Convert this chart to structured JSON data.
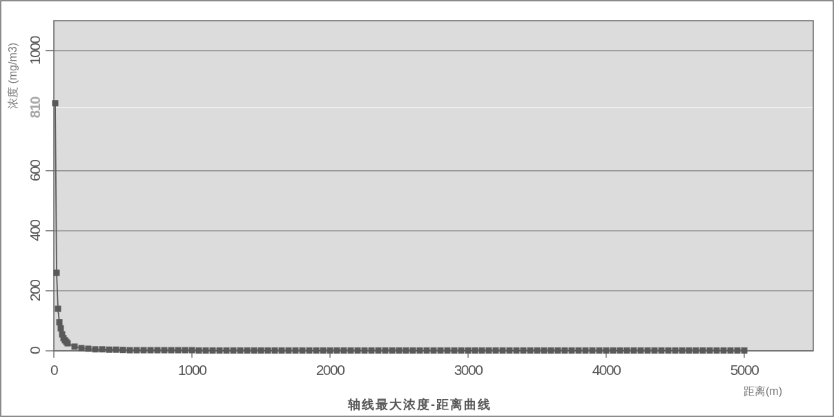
{
  "chart_data": {
    "type": "line",
    "title": "轴线最大浓度-距离曲线",
    "xlabel": "距离(m)",
    "ylabel": "浓度 (mg/m3)",
    "x": [
      10,
      20,
      30,
      40,
      50,
      60,
      70,
      80,
      90,
      100,
      150,
      200,
      250,
      300,
      350,
      400,
      450,
      500,
      550,
      600,
      650,
      700,
      750,
      800,
      850,
      900,
      950,
      1000,
      1050,
      1100,
      1150,
      1200,
      1250,
      1300,
      1350,
      1400,
      1450,
      1500,
      1550,
      1600,
      1650,
      1700,
      1750,
      1800,
      1850,
      1900,
      1950,
      2000,
      2050,
      2100,
      2150,
      2200,
      2250,
      2300,
      2350,
      2400,
      2450,
      2500,
      2550,
      2600,
      2650,
      2700,
      2750,
      2800,
      2850,
      2900,
      2950,
      3000,
      3050,
      3100,
      3150,
      3200,
      3250,
      3300,
      3350,
      3400,
      3450,
      3500,
      3550,
      3600,
      3650,
      3700,
      3750,
      3800,
      3850,
      3900,
      3950,
      4000,
      4050,
      4100,
      4150,
      4200,
      4250,
      4300,
      4350,
      4400,
      4450,
      4500,
      4550,
      4600,
      4650,
      4700,
      4750,
      4800,
      4850,
      4900,
      4950,
      5000
    ],
    "series": [
      {
        "color": "#595959",
        "values": [
          825,
          260,
          140,
          95,
          75,
          55,
          42,
          35,
          30,
          25,
          14,
          9,
          7,
          5,
          5,
          4,
          4,
          3,
          2,
          2,
          2,
          2,
          2,
          2,
          2,
          2,
          2,
          2,
          1,
          1,
          1,
          1,
          1,
          1,
          1,
          1,
          1,
          1,
          1,
          1,
          1,
          1,
          1,
          1,
          1,
          1,
          1,
          1,
          1,
          1,
          1,
          1,
          1,
          1,
          1,
          1,
          1,
          1,
          1,
          1,
          1,
          1,
          1,
          1,
          1,
          1,
          1,
          1,
          1,
          1,
          1,
          1,
          1,
          1,
          1,
          1,
          1,
          1,
          1,
          1,
          1,
          1,
          1,
          1,
          1,
          1,
          1,
          1,
          1,
          1,
          1,
          1,
          1,
          1,
          1,
          1,
          1,
          1,
          1,
          1,
          1,
          1,
          1,
          1,
          1,
          1,
          1,
          1
        ]
      }
    ],
    "xlim": [
      0,
      5500
    ],
    "ylim": [
      0,
      1100
    ],
    "xticks": [
      0,
      1000,
      2000,
      3000,
      4000,
      5000
    ],
    "yticks": [
      0,
      200,
      400,
      600,
      1000
    ],
    "ref_lines": [
      {
        "axis": "y",
        "value": 810,
        "label": "810",
        "color": "#f4f4f4"
      }
    ],
    "grid": "y",
    "marker": "square"
  }
}
